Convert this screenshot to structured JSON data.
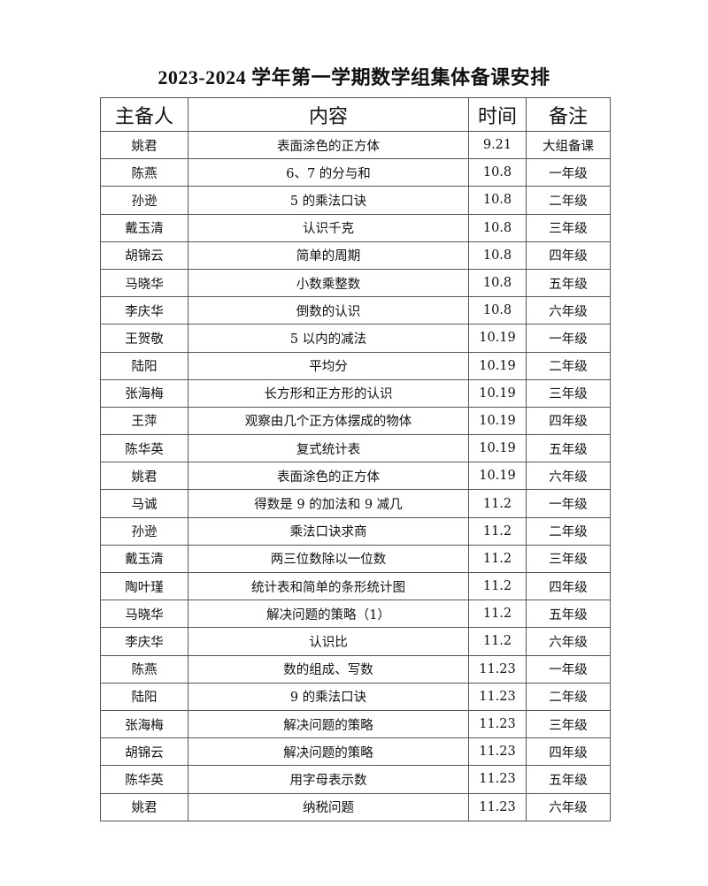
{
  "title": "2023-2024 学年第一学期数学组集体备课安排",
  "table": {
    "headers": [
      "主备人",
      "内容",
      "时间",
      "备注"
    ],
    "rows": [
      [
        "姚君",
        "表面涂色的正方体",
        "9.21",
        "大组备课"
      ],
      [
        "陈燕",
        "6、7 的分与和",
        "10.8",
        "一年级"
      ],
      [
        "孙逊",
        "5 的乘法口诀",
        "10.8",
        "二年级"
      ],
      [
        "戴玉清",
        "认识千克",
        "10.8",
        "三年级"
      ],
      [
        "胡锦云",
        "简单的周期",
        "10.8",
        "四年级"
      ],
      [
        "马晓华",
        "小数乘整数",
        "10.8",
        "五年级"
      ],
      [
        "李庆华",
        "倒数的认识",
        "10.8",
        "六年级"
      ],
      [
        "王贺敬",
        "5 以内的减法",
        "10.19",
        "一年级"
      ],
      [
        "陆阳",
        "平均分",
        "10.19",
        "二年级"
      ],
      [
        "张海梅",
        "长方形和正方形的认识",
        "10.19",
        "三年级"
      ],
      [
        "王萍",
        "观察由几个正方体摆成的物体",
        "10.19",
        "四年级"
      ],
      [
        "陈华英",
        "复式统计表",
        "10.19",
        "五年级"
      ],
      [
        "姚君",
        "表面涂色的正方体",
        "10.19",
        "六年级"
      ],
      [
        "马诚",
        "得数是 9 的加法和 9 减几",
        "11.2",
        "一年级"
      ],
      [
        "孙逊",
        "乘法口诀求商",
        "11.2",
        "二年级"
      ],
      [
        "戴玉清",
        "两三位数除以一位数",
        "11.2",
        "三年级"
      ],
      [
        "陶叶瑾",
        "统计表和简单的条形统计图",
        "11.2",
        "四年级"
      ],
      [
        "马晓华",
        "解决问题的策略（1）",
        "11.2",
        "五年级"
      ],
      [
        "李庆华",
        "认识比",
        "11.2",
        "六年级"
      ],
      [
        "陈燕",
        "数的组成、写数",
        "11.23",
        "一年级"
      ],
      [
        "陆阳",
        "9 的乘法口诀",
        "11.23",
        "二年级"
      ],
      [
        "张海梅",
        "解决问题的策略",
        "11.23",
        "三年级"
      ],
      [
        "胡锦云",
        "解决问题的策略",
        "11.23",
        "四年级"
      ],
      [
        "陈华英",
        "用字母表示数",
        "11.23",
        "五年级"
      ],
      [
        "姚君",
        "纳税问题",
        "11.23",
        "六年级"
      ]
    ]
  }
}
